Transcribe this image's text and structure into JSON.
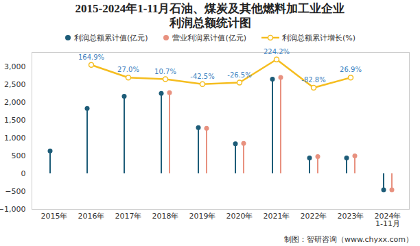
{
  "chart_data": {
    "type": "bar",
    "title": "2015-2024年1-11月石油、煤炭及其他燃料加工业企业\n利润总额统计图",
    "categories": [
      "2015年",
      "2016年",
      "2017年",
      "2018年",
      "2019年",
      "2020年",
      "2021年",
      "2022年",
      "2023年",
      "2024年\n1-11月"
    ],
    "ylim": [
      -1000,
      3400
    ],
    "yticks": [
      -1000,
      -500,
      0,
      500,
      1000,
      1500,
      2000,
      2500,
      3000
    ],
    "y2lim": [
      -1400,
      300
    ],
    "legend": "top",
    "series": [
      {
        "name": "利润总额累计值(亿元)",
        "type": "bar",
        "marker": "circle",
        "color": "#1d5c78",
        "values": [
          640,
          1830,
          2170,
          2250,
          1290,
          840,
          2650,
          440,
          440,
          -450
        ]
      },
      {
        "name": "营业利润累计值(亿元)",
        "type": "bar",
        "marker": "circle",
        "color": "#e8917f",
        "values": [
          null,
          null,
          null,
          2270,
          1270,
          850,
          2700,
          480,
          500,
          -450
        ]
      },
      {
        "name": "利润总额累计增长(%)",
        "type": "line",
        "axis": "y2",
        "marker": "circle",
        "color": "#f5bd1f",
        "values": [
          null,
          164.9,
          27.0,
          10.7,
          -42.5,
          -26.5,
          224.2,
          -82.8,
          26.9,
          null
        ],
        "data_labels": true,
        "value_labels": [
          null,
          "164.9%",
          "27.0%",
          "10.7%",
          "-42.5%",
          "-26.5%",
          "224.2%",
          "-82.8%",
          "26.9%",
          null
        ]
      }
    ],
    "source": "制图：智研咨询（www.chyxx.com）"
  }
}
